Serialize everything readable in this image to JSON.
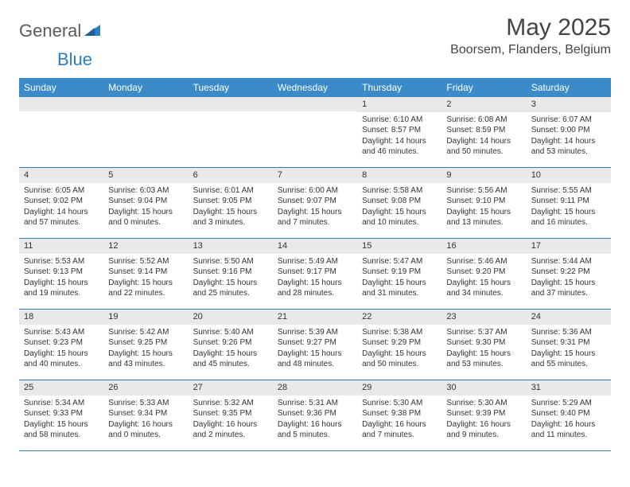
{
  "brand": {
    "part1": "General",
    "part2": "Blue"
  },
  "title": "May 2025",
  "location": "Boorsem, Flanders, Belgium",
  "colors": {
    "header_bar": "#3b8bc9",
    "accent": "#2d7dc2",
    "daynum_bg": "#e9e9e9",
    "text": "#333333",
    "background": "#ffffff"
  },
  "font": {
    "family": "Arial",
    "title_size": 30,
    "location_size": 16,
    "weekday_size": 12,
    "daynum_size": 11,
    "body_size": 10
  },
  "weekdays": [
    "Sunday",
    "Monday",
    "Tuesday",
    "Wednesday",
    "Thursday",
    "Friday",
    "Saturday"
  ],
  "weeks": [
    [
      null,
      null,
      null,
      null,
      {
        "n": "1",
        "sr": "Sunrise: 6:10 AM",
        "ss": "Sunset: 8:57 PM",
        "d1": "Daylight: 14 hours",
        "d2": "and 46 minutes."
      },
      {
        "n": "2",
        "sr": "Sunrise: 6:08 AM",
        "ss": "Sunset: 8:59 PM",
        "d1": "Daylight: 14 hours",
        "d2": "and 50 minutes."
      },
      {
        "n": "3",
        "sr": "Sunrise: 6:07 AM",
        "ss": "Sunset: 9:00 PM",
        "d1": "Daylight: 14 hours",
        "d2": "and 53 minutes."
      }
    ],
    [
      {
        "n": "4",
        "sr": "Sunrise: 6:05 AM",
        "ss": "Sunset: 9:02 PM",
        "d1": "Daylight: 14 hours",
        "d2": "and 57 minutes."
      },
      {
        "n": "5",
        "sr": "Sunrise: 6:03 AM",
        "ss": "Sunset: 9:04 PM",
        "d1": "Daylight: 15 hours",
        "d2": "and 0 minutes."
      },
      {
        "n": "6",
        "sr": "Sunrise: 6:01 AM",
        "ss": "Sunset: 9:05 PM",
        "d1": "Daylight: 15 hours",
        "d2": "and 3 minutes."
      },
      {
        "n": "7",
        "sr": "Sunrise: 6:00 AM",
        "ss": "Sunset: 9:07 PM",
        "d1": "Daylight: 15 hours",
        "d2": "and 7 minutes."
      },
      {
        "n": "8",
        "sr": "Sunrise: 5:58 AM",
        "ss": "Sunset: 9:08 PM",
        "d1": "Daylight: 15 hours",
        "d2": "and 10 minutes."
      },
      {
        "n": "9",
        "sr": "Sunrise: 5:56 AM",
        "ss": "Sunset: 9:10 PM",
        "d1": "Daylight: 15 hours",
        "d2": "and 13 minutes."
      },
      {
        "n": "10",
        "sr": "Sunrise: 5:55 AM",
        "ss": "Sunset: 9:11 PM",
        "d1": "Daylight: 15 hours",
        "d2": "and 16 minutes."
      }
    ],
    [
      {
        "n": "11",
        "sr": "Sunrise: 5:53 AM",
        "ss": "Sunset: 9:13 PM",
        "d1": "Daylight: 15 hours",
        "d2": "and 19 minutes."
      },
      {
        "n": "12",
        "sr": "Sunrise: 5:52 AM",
        "ss": "Sunset: 9:14 PM",
        "d1": "Daylight: 15 hours",
        "d2": "and 22 minutes."
      },
      {
        "n": "13",
        "sr": "Sunrise: 5:50 AM",
        "ss": "Sunset: 9:16 PM",
        "d1": "Daylight: 15 hours",
        "d2": "and 25 minutes."
      },
      {
        "n": "14",
        "sr": "Sunrise: 5:49 AM",
        "ss": "Sunset: 9:17 PM",
        "d1": "Daylight: 15 hours",
        "d2": "and 28 minutes."
      },
      {
        "n": "15",
        "sr": "Sunrise: 5:47 AM",
        "ss": "Sunset: 9:19 PM",
        "d1": "Daylight: 15 hours",
        "d2": "and 31 minutes."
      },
      {
        "n": "16",
        "sr": "Sunrise: 5:46 AM",
        "ss": "Sunset: 9:20 PM",
        "d1": "Daylight: 15 hours",
        "d2": "and 34 minutes."
      },
      {
        "n": "17",
        "sr": "Sunrise: 5:44 AM",
        "ss": "Sunset: 9:22 PM",
        "d1": "Daylight: 15 hours",
        "d2": "and 37 minutes."
      }
    ],
    [
      {
        "n": "18",
        "sr": "Sunrise: 5:43 AM",
        "ss": "Sunset: 9:23 PM",
        "d1": "Daylight: 15 hours",
        "d2": "and 40 minutes."
      },
      {
        "n": "19",
        "sr": "Sunrise: 5:42 AM",
        "ss": "Sunset: 9:25 PM",
        "d1": "Daylight: 15 hours",
        "d2": "and 43 minutes."
      },
      {
        "n": "20",
        "sr": "Sunrise: 5:40 AM",
        "ss": "Sunset: 9:26 PM",
        "d1": "Daylight: 15 hours",
        "d2": "and 45 minutes."
      },
      {
        "n": "21",
        "sr": "Sunrise: 5:39 AM",
        "ss": "Sunset: 9:27 PM",
        "d1": "Daylight: 15 hours",
        "d2": "and 48 minutes."
      },
      {
        "n": "22",
        "sr": "Sunrise: 5:38 AM",
        "ss": "Sunset: 9:29 PM",
        "d1": "Daylight: 15 hours",
        "d2": "and 50 minutes."
      },
      {
        "n": "23",
        "sr": "Sunrise: 5:37 AM",
        "ss": "Sunset: 9:30 PM",
        "d1": "Daylight: 15 hours",
        "d2": "and 53 minutes."
      },
      {
        "n": "24",
        "sr": "Sunrise: 5:36 AM",
        "ss": "Sunset: 9:31 PM",
        "d1": "Daylight: 15 hours",
        "d2": "and 55 minutes."
      }
    ],
    [
      {
        "n": "25",
        "sr": "Sunrise: 5:34 AM",
        "ss": "Sunset: 9:33 PM",
        "d1": "Daylight: 15 hours",
        "d2": "and 58 minutes."
      },
      {
        "n": "26",
        "sr": "Sunrise: 5:33 AM",
        "ss": "Sunset: 9:34 PM",
        "d1": "Daylight: 16 hours",
        "d2": "and 0 minutes."
      },
      {
        "n": "27",
        "sr": "Sunrise: 5:32 AM",
        "ss": "Sunset: 9:35 PM",
        "d1": "Daylight: 16 hours",
        "d2": "and 2 minutes."
      },
      {
        "n": "28",
        "sr": "Sunrise: 5:31 AM",
        "ss": "Sunset: 9:36 PM",
        "d1": "Daylight: 16 hours",
        "d2": "and 5 minutes."
      },
      {
        "n": "29",
        "sr": "Sunrise: 5:30 AM",
        "ss": "Sunset: 9:38 PM",
        "d1": "Daylight: 16 hours",
        "d2": "and 7 minutes."
      },
      {
        "n": "30",
        "sr": "Sunrise: 5:30 AM",
        "ss": "Sunset: 9:39 PM",
        "d1": "Daylight: 16 hours",
        "d2": "and 9 minutes."
      },
      {
        "n": "31",
        "sr": "Sunrise: 5:29 AM",
        "ss": "Sunset: 9:40 PM",
        "d1": "Daylight: 16 hours",
        "d2": "and 11 minutes."
      }
    ]
  ]
}
